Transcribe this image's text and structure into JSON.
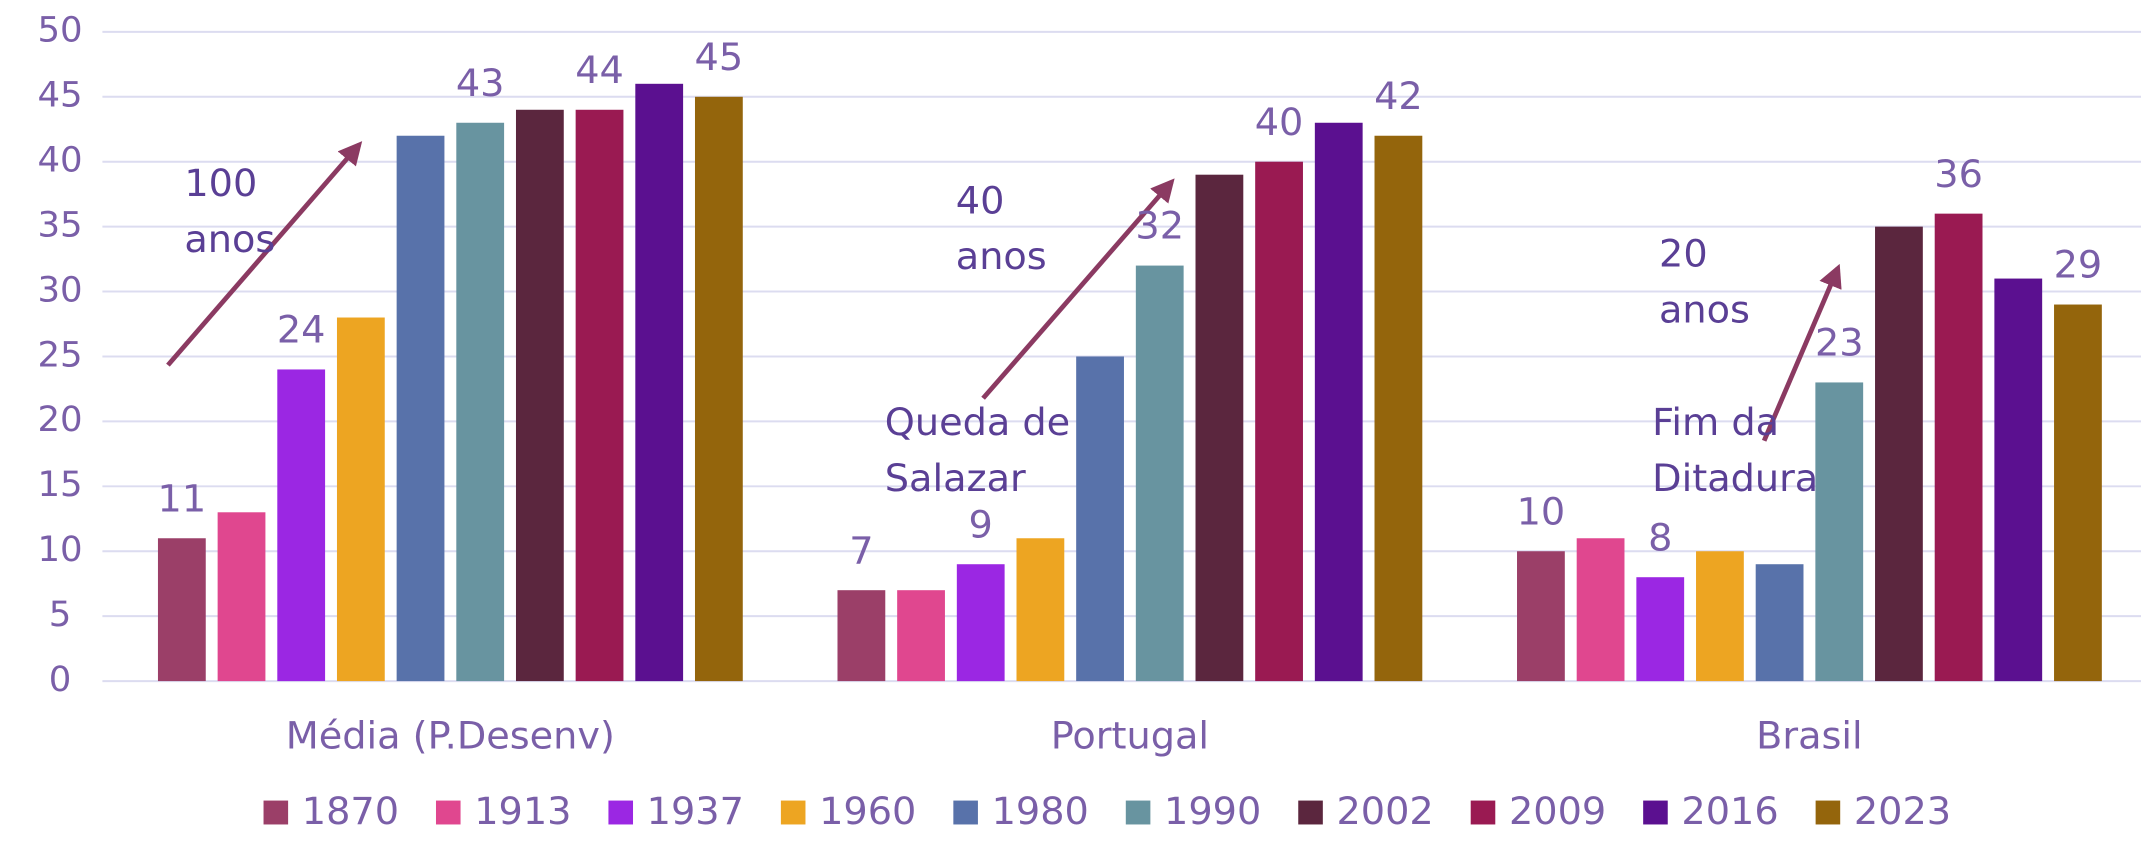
{
  "chart_data": {
    "type": "bar",
    "categories": [
      "Média (P.Desenv)",
      "Portugal",
      "Brasil"
    ],
    "series": [
      {
        "name": "1870",
        "color": "#9b3f68",
        "values": [
          11,
          7,
          10
        ],
        "data_labels": true
      },
      {
        "name": "1913",
        "color": "#e0478f",
        "values": [
          13,
          7,
          11
        ],
        "data_labels": false
      },
      {
        "name": "1937",
        "color": "#9b27e3",
        "values": [
          24,
          9,
          8
        ],
        "data_labels": true
      },
      {
        "name": "1960",
        "color": "#eda522",
        "values": [
          28,
          11,
          10
        ],
        "data_labels": false
      },
      {
        "name": "1980",
        "color": "#5872aa",
        "values": [
          42,
          25,
          9
        ],
        "data_labels": false
      },
      {
        "name": "1990",
        "color": "#6894a0",
        "values": [
          43,
          32,
          23
        ],
        "data_labels": true
      },
      {
        "name": "2002",
        "color": "#5b263e",
        "values": [
          44,
          39,
          35
        ],
        "data_labels": false
      },
      {
        "name": "2009",
        "color": "#9a1a52",
        "values": [
          44,
          40,
          36
        ],
        "data_labels": true
      },
      {
        "name": "2016",
        "color": "#5b1090",
        "values": [
          46,
          43,
          31
        ],
        "data_labels": false
      },
      {
        "name": "2023",
        "color": "#94650c",
        "values": [
          45,
          42,
          29
        ],
        "data_labels": true
      }
    ],
    "ylim": [
      0,
      50
    ],
    "yticks": [
      0,
      5,
      10,
      15,
      20,
      25,
      30,
      35,
      40,
      45,
      50
    ],
    "grid": true,
    "legend": "bottom",
    "annotations": [
      {
        "lines": [
          "100",
          "anos"
        ]
      },
      {
        "lines": [
          "40",
          "anos"
        ]
      },
      {
        "lines": [
          "Queda de",
          "Salazar"
        ]
      },
      {
        "lines": [
          "20",
          "anos"
        ]
      },
      {
        "lines": [
          "Fim da",
          "Ditadura"
        ]
      }
    ]
  }
}
